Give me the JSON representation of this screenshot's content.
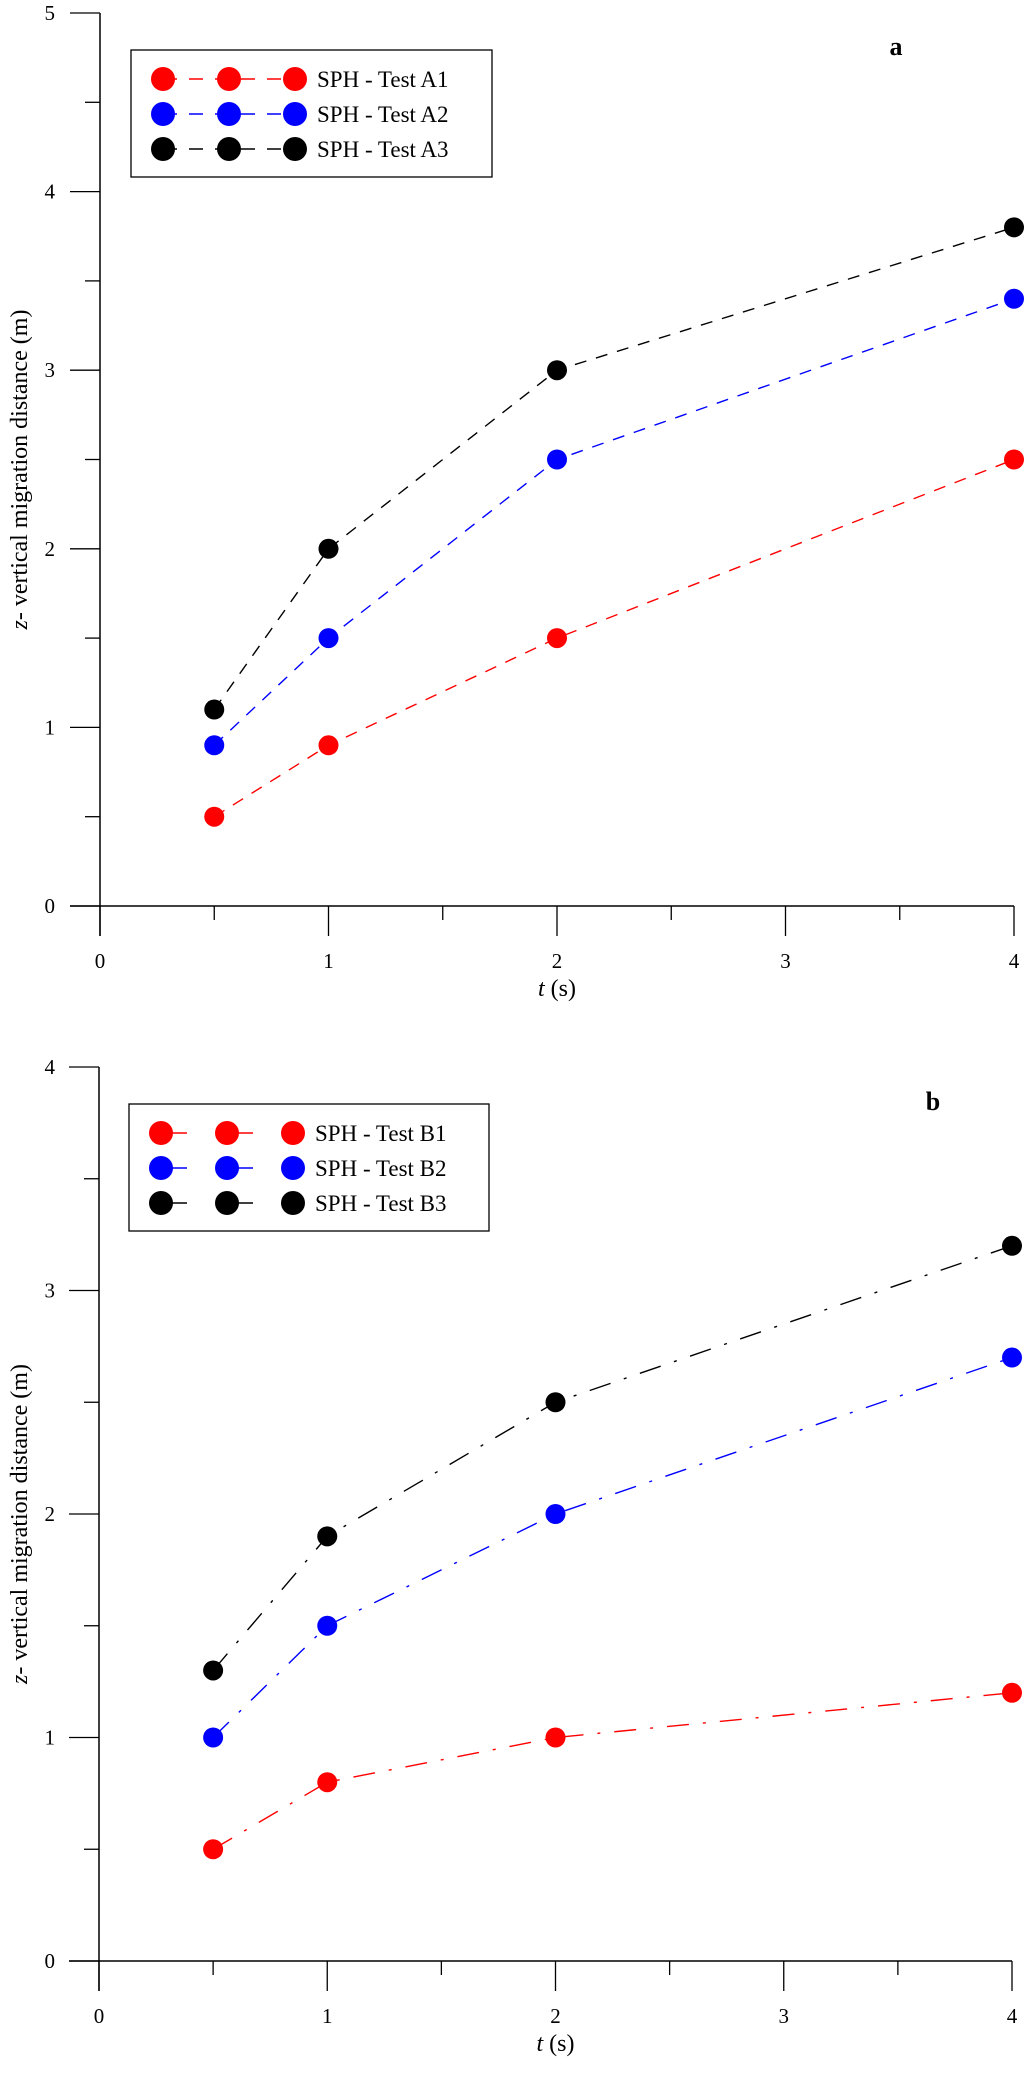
{
  "chart_data": [
    {
      "type": "line",
      "panel_label": "a",
      "xlabel_italic": "t",
      "xlabel_unit": " (s)",
      "ylabel_italic": "z",
      "ylabel_rest": "- vertical migration distance (m)",
      "xlim": [
        0,
        4
      ],
      "ylim": [
        0,
        5
      ],
      "xticks": [
        0,
        1,
        2,
        3,
        4
      ],
      "yticks": [
        0,
        1,
        2,
        3,
        4,
        5
      ],
      "x": [
        0.5,
        1,
        2,
        4
      ],
      "line_style": "dashed",
      "legend_position": "top-left",
      "grid": false,
      "series": [
        {
          "name": "SPH - Test A1",
          "color": "#ff0000",
          "values": [
            0.5,
            0.9,
            1.5,
            2.5
          ]
        },
        {
          "name": "SPH - Test A2",
          "color": "#0000ff",
          "values": [
            0.9,
            1.5,
            2.5,
            3.4
          ]
        },
        {
          "name": "SPH - Test A3",
          "color": "#000000",
          "values": [
            1.1,
            2.0,
            3.0,
            3.8
          ]
        }
      ]
    },
    {
      "type": "line",
      "panel_label": "b",
      "xlabel_italic": "t",
      "xlabel_unit": " (s)",
      "ylabel_italic": "z",
      "ylabel_rest": "- vertical migration distance (m)",
      "xlim": [
        0,
        4
      ],
      "ylim": [
        0,
        4
      ],
      "xticks": [
        0,
        1,
        2,
        3,
        4
      ],
      "yticks": [
        0,
        1,
        2,
        3,
        4
      ],
      "x": [
        0.5,
        1,
        2,
        4
      ],
      "line_style": "dash-dot",
      "legend_position": "top-left",
      "grid": false,
      "series": [
        {
          "name": "SPH - Test B1",
          "color": "#ff0000",
          "values": [
            0.5,
            0.8,
            1.0,
            1.2
          ]
        },
        {
          "name": "SPH - Test B2",
          "color": "#0000ff",
          "values": [
            1.0,
            1.5,
            2.0,
            2.7
          ]
        },
        {
          "name": "SPH - Test B3",
          "color": "#000000",
          "values": [
            1.3,
            1.9,
            2.5,
            3.2
          ]
        }
      ]
    }
  ]
}
